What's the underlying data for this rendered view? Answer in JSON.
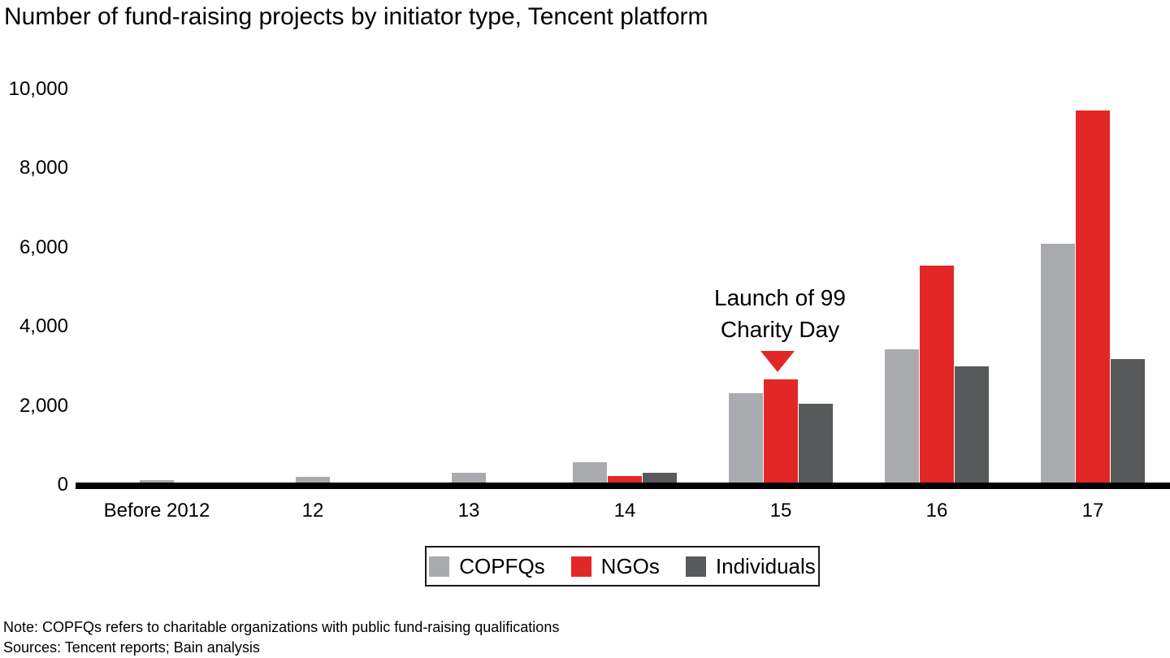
{
  "title": "Number of fund-raising projects by initiator type, Tencent platform",
  "annotation": {
    "line1": "Launch of 99",
    "line2": "Charity Day"
  },
  "legend": [
    {
      "label": "COPFQs",
      "color": "#a9abae"
    },
    {
      "label": "NGOs",
      "color": "#e32726"
    },
    {
      "label": "Individuals",
      "color": "#58595b"
    }
  ],
  "footnotes": {
    "note": "Note: COPFQs refers to charitable organizations with public fund-raising qualifications",
    "sources": "Sources: Tencent reports; Bain analysis"
  },
  "colors": {
    "copfqs": "#a9abae",
    "ngos": "#e32726",
    "individuals": "#58595b",
    "axis": "#000000"
  },
  "chart_data": {
    "type": "bar",
    "title": "Number of fund-raising projects by initiator type, Tencent platform",
    "categories": [
      "Before 2012",
      "12",
      "13",
      "14",
      "15",
      "16",
      "17"
    ],
    "series": [
      {
        "name": "COPFQs",
        "color": "#a9abae",
        "values": [
          100,
          180,
          290,
          550,
          2300,
          3400,
          6070
        ]
      },
      {
        "name": "NGOs",
        "color": "#e32726",
        "values": [
          0,
          0,
          0,
          200,
          2650,
          5520,
          9440
        ]
      },
      {
        "name": "Individuals",
        "color": "#58595b",
        "values": [
          0,
          0,
          0,
          280,
          2040,
          2970,
          3160
        ]
      }
    ],
    "ylim": [
      0,
      10000
    ],
    "yticks": [
      0,
      2000,
      4000,
      6000,
      8000,
      10000
    ],
    "ytick_labels": [
      "0",
      "2,000",
      "4,000",
      "6,000",
      "8,000",
      "10,000"
    ],
    "xlabel": "",
    "ylabel": "",
    "grid": false,
    "legend_position": "bottom",
    "annotation": {
      "text": "Launch of 99 Charity Day",
      "target_category": "15",
      "target_series": "NGOs"
    }
  }
}
